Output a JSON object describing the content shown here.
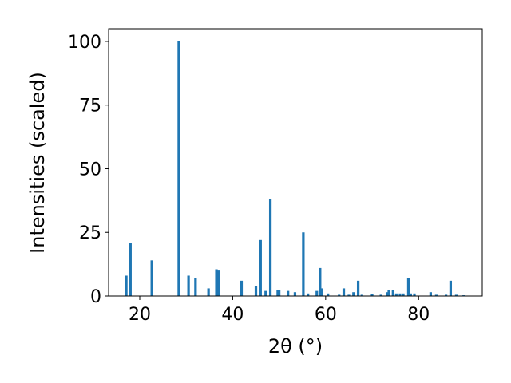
{
  "chart_data": {
    "type": "bar",
    "xlabel": "2θ (°)",
    "ylabel": "Intensities (scaled)",
    "color": "#1f77b4",
    "x": [
      17.1,
      18.0,
      22.6,
      28.4,
      30.5,
      32.0,
      34.8,
      36.5,
      37.0,
      41.9,
      45.0,
      46.0,
      47.1,
      48.1,
      49.7,
      50.0,
      51.9,
      53.4,
      55.2,
      56.2,
      58.1,
      58.8,
      59.1,
      60.5,
      62.9,
      63.9,
      65.0,
      66.0,
      67.0,
      67.8,
      70.0,
      71.9,
      73.3,
      73.6,
      74.5,
      75.2,
      76.0,
      76.7,
      77.8,
      78.3,
      79.1,
      82.6,
      83.8,
      85.9,
      86.9,
      88.1,
      89.7
    ],
    "values": [
      8,
      21,
      14,
      100,
      8,
      7,
      3,
      10.5,
      10,
      6,
      4,
      22,
      2,
      38,
      2.5,
      2.5,
      2,
      1.5,
      25,
      1,
      2,
      11,
      3,
      1,
      0.5,
      3,
      0.5,
      1.5,
      6,
      0.5,
      0.8,
      0.5,
      1.5,
      2.5,
      2.5,
      1,
      1,
      1,
      7,
      1,
      1,
      1.5,
      0.5,
      0.5,
      6,
      0.5,
      0.3
    ],
    "xlim": [
      13.3,
      93.7
    ],
    "xticks": [
      20,
      40,
      60,
      80
    ],
    "ylim": [
      0,
      105
    ],
    "yticks": [
      0,
      25,
      50,
      75,
      100
    ]
  }
}
